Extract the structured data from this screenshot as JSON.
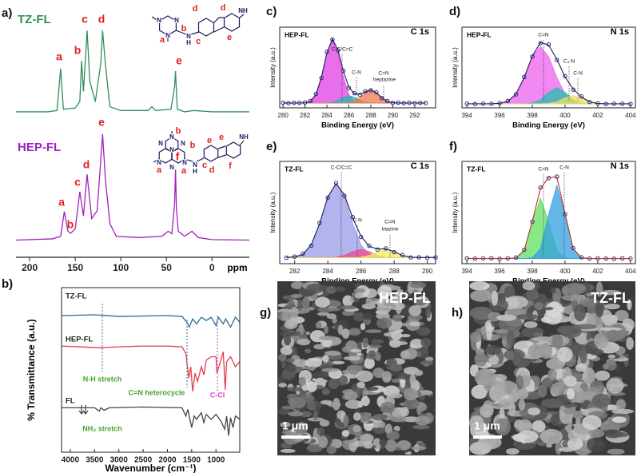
{
  "chart_data": [
    {
      "type": "line",
      "label": "a)",
      "xlim": [
        215,
        -41
      ],
      "ylim": [
        0,
        100
      ],
      "xticks": [
        200,
        150,
        100,
        50,
        0
      ],
      "xlabel": "ppm",
      "series": [
        {
          "name": "TZ-FL",
          "color": "#2f8f5b",
          "x": [
            215,
            180,
            170,
            166,
            163,
            150,
            145,
            143,
            141,
            137,
            134,
            128,
            122,
            120,
            117,
            112,
            100,
            70,
            66,
            62,
            45,
            41,
            40,
            39,
            38,
            30,
            20,
            0,
            -41
          ],
          "values": [
            56,
            56,
            56.5,
            73,
            57,
            57.5,
            60,
            76,
            64,
            88,
            68,
            60,
            75,
            88,
            75,
            58,
            56.5,
            56.5,
            58,
            56.5,
            57,
            66,
            72,
            64,
            57,
            56,
            56.5,
            56,
            56
          ],
          "peaks": [
            "a",
            "b",
            "c",
            "d",
            "e"
          ]
        },
        {
          "name": "HEP-FL",
          "color": "#a020c0",
          "x": [
            215,
            175,
            166,
            162,
            158,
            155,
            150,
            145,
            141,
            137,
            132,
            126,
            123,
            120,
            117,
            112,
            105,
            80,
            55,
            48,
            44,
            41,
            40,
            39,
            37,
            30,
            22,
            15,
            0,
            -41
          ],
          "values": [
            5.5,
            6,
            7,
            16.7,
            9,
            8.2,
            10,
            24.5,
            15,
            31.4,
            14,
            17,
            32,
            47.2,
            30,
            12,
            7,
            6.5,
            7,
            9,
            8,
            20,
            33.3,
            18,
            9,
            7,
            9,
            6.5,
            5.7,
            5.5
          ],
          "peaks": [
            "a",
            "b",
            "c",
            "d",
            "e",
            "f"
          ]
        }
      ],
      "structures": [
        [
          "N",
          "N",
          "N",
          "a",
          "b",
          "N",
          "H",
          "c",
          "d",
          "d",
          "e",
          "NH"
        ],
        [
          "N",
          "N",
          "N",
          "N",
          "N",
          "N",
          "N",
          "b",
          "b",
          "a",
          "a",
          "N",
          "H",
          "c",
          "d",
          "e",
          "e",
          "f",
          "NH"
        ]
      ]
    },
    {
      "type": "line",
      "label": "b)",
      "xlim": [
        4180,
        510
      ],
      "ylim": [
        0,
        100
      ],
      "xticks": [
        4000,
        3500,
        3000,
        2500,
        2000,
        1500,
        1000
      ],
      "xlabel": "Wavenumber (cm⁻¹)",
      "ylabel": "% Transmittance (a.u.)",
      "series": [
        {
          "name": "TZ-FL",
          "color": "#2a6f8f",
          "x": [
            4180,
            3500,
            3000,
            2000,
            1700,
            1600,
            1550,
            1480,
            1400,
            1300,
            1200,
            1100,
            1000,
            950,
            850,
            800,
            700,
            600,
            510
          ],
          "values": [
            83,
            83.5,
            82.5,
            83,
            82.5,
            79,
            76,
            81,
            78,
            82,
            80,
            82,
            77,
            82,
            78,
            81,
            76,
            82,
            79
          ]
        },
        {
          "name": "HEP-FL",
          "color": "#e0404a",
          "x": [
            4180,
            3400,
            3000,
            2500,
            2000,
            1700,
            1620,
            1560,
            1520,
            1480,
            1430,
            1380,
            1300,
            1250,
            1200,
            1100,
            1000,
            980,
            900,
            850,
            810,
            780,
            700,
            600,
            510
          ],
          "values": [
            64.5,
            63.5,
            64,
            64.5,
            64.5,
            64,
            60,
            45,
            52,
            37,
            48,
            43,
            52,
            47,
            56,
            58,
            58,
            48,
            56,
            61,
            38,
            55,
            58,
            52,
            55
          ]
        },
        {
          "name": "FL",
          "color": "#444444",
          "x": [
            4180,
            3500,
            3400,
            3370,
            3300,
            3200,
            2500,
            1700,
            1620,
            1580,
            1500,
            1450,
            1400,
            1300,
            1250,
            1200,
            1100,
            1000,
            900,
            820,
            780,
            740,
            700,
            650,
            600,
            510
          ],
          "values": [
            27,
            27,
            25,
            27,
            25.5,
            27,
            27.5,
            27,
            22,
            26,
            15,
            22,
            20,
            24,
            18,
            23,
            20,
            23,
            19,
            14,
            22,
            10,
            21,
            15,
            22,
            20
          ]
        }
      ],
      "annotations": [
        "N-H stretch",
        "C=N heterocycle",
        "C-Cl",
        "NH₂ stretch"
      ]
    },
    {
      "type": "xps",
      "label": "c)",
      "sample": "HEP-FL",
      "core": "C 1s",
      "xlim": [
        279.7,
        293.9
      ],
      "ylim": [
        0,
        100
      ],
      "xticks": [
        280,
        282,
        284,
        286,
        288,
        290,
        292
      ],
      "xlabel": "Binding Energy (eV)",
      "ylabel": "Intensity (a.u.)",
      "x": [
        280,
        280.5,
        281,
        281.5,
        282,
        282.5,
        283,
        283.5,
        284,
        284.5,
        285,
        285.5,
        286,
        286.5,
        287,
        287.5,
        288,
        288.5,
        289,
        289.5,
        290,
        290.5,
        291,
        291.5,
        292,
        292.5,
        293
      ],
      "series": [
        {
          "color": "#e23de6",
          "style": "area",
          "values": [
            6,
            6,
            6,
            6,
            6.3,
            8.2,
            16.5,
            38,
            68.4,
            84,
            68.4,
            38,
            16.5,
            8.2,
            6.3,
            6,
            6,
            6,
            6,
            6,
            6,
            6,
            6,
            6,
            6,
            6,
            6
          ]
        },
        {
          "color": "#2ab5b5",
          "style": "area",
          "values": [
            6,
            6,
            6,
            6,
            6,
            6,
            6,
            6,
            6,
            7.2,
            9.7,
            13.2,
            15,
            13.2,
            9.7,
            7.2,
            6.25,
            6,
            6,
            6,
            6,
            6,
            6,
            6,
            6,
            6,
            6
          ]
        },
        {
          "color": "#f07a50",
          "style": "area",
          "values": [
            6,
            6,
            6,
            6,
            6,
            6,
            6,
            6,
            6,
            6,
            6,
            6,
            6,
            8.2,
            12.6,
            18.8,
            22,
            18.8,
            12.6,
            8.2,
            6.4,
            6,
            6,
            6,
            6,
            6,
            6
          ]
        },
        {
          "color": "#2a2a7a",
          "style": "dots",
          "values": [
            6.4,
            5.8,
            6.2,
            6.1,
            6.6,
            8.6,
            17.2,
            37.1,
            69.5,
            84.6,
            71.3,
            46.1,
            24.8,
            18.1,
            16.2,
            20.5,
            21.8,
            19.3,
            12.1,
            8.5,
            6.1,
            6.3,
            5.9,
            6.2,
            5.8,
            6.1,
            6
          ]
        },
        {
          "color": "#1d1d5a",
          "style": "line",
          "values": [
            6,
            6,
            6,
            6,
            6.3,
            8.2,
            16.5,
            38,
            68.4,
            85.2,
            72.1,
            45.2,
            25.5,
            17.6,
            16.6,
            20,
            22.3,
            18.8,
            12.6,
            8.2,
            6.4,
            6,
            6,
            6,
            6,
            6,
            6
          ]
        }
      ],
      "annotations": [
        "C-C/C=C",
        "C-N",
        "C=N",
        "heptazine"
      ]
    },
    {
      "type": "xps",
      "label": "d)",
      "sample": "HEP-FL",
      "core": "N 1s",
      "xlim": [
        393.7,
        404.3
      ],
      "ylim": [
        0,
        100
      ],
      "xticks": [
        394,
        396,
        398,
        400,
        402,
        404
      ],
      "xlabel": "Binding Energy (eV)",
      "ylabel": "Intensity (a.u.)",
      "x": [
        394,
        394.5,
        395,
        395.5,
        396,
        396.5,
        397,
        397.5,
        398,
        398.5,
        399,
        399.5,
        400,
        400.5,
        401,
        401.5,
        402,
        402.5,
        403,
        403.5,
        404
      ],
      "series": [
        {
          "color": "#ee60ee",
          "style": "area",
          "values": [
            5,
            5,
            5,
            5,
            5.6,
            8.1,
            17.2,
            37.5,
            63.4,
            76,
            63.4,
            37.5,
            17.2,
            8.1,
            5.6,
            5,
            5,
            5,
            5,
            5,
            5
          ]
        },
        {
          "color": "#20c0b0",
          "style": "area",
          "values": [
            5,
            5,
            5,
            5,
            5,
            5,
            5,
            5,
            5.9,
            10,
            19.1,
            25,
            19.1,
            10,
            5.9,
            5,
            5,
            5,
            5,
            5,
            5
          ]
        },
        {
          "color": "#f0e060",
          "style": "area",
          "values": [
            5,
            5,
            5,
            5,
            5,
            5,
            5,
            5,
            5,
            5,
            5.4,
            7.5,
            12.1,
            15,
            12.1,
            7.5,
            5.4,
            5,
            5,
            5,
            5
          ]
        },
        {
          "color": "#2a2a7a",
          "style": "dots",
          "values": [
            5.3,
            4.8,
            5.2,
            5.1,
            5.9,
            8.6,
            16.7,
            38.2,
            63.6,
            80.2,
            78.5,
            59.3,
            39.1,
            22.6,
            14.1,
            7.2,
            5.7,
            4.9,
            5.2,
            5.1,
            4.9
          ]
        },
        {
          "color": "#1d1d5a",
          "style": "line",
          "values": [
            5,
            5,
            5,
            5,
            5.6,
            8.1,
            17.2,
            37.5,
            64.3,
            81,
            77.9,
            60,
            38.4,
            23.1,
            13.6,
            7.5,
            5.4,
            5,
            5,
            5,
            5
          ]
        }
      ],
      "annotations": [
        "C=N",
        "C₃-N",
        "C-N"
      ]
    },
    {
      "type": "xps",
      "label": "e)",
      "sample": "TZ-FL",
      "core": "C 1s",
      "xlim": [
        281.1,
        290.5
      ],
      "ylim": [
        0,
        100
      ],
      "xticks": [
        282,
        284,
        286,
        288,
        290
      ],
      "xlabel": "Binding Energy (eV)",
      "ylabel": "Intensity (a.u.)",
      "x": [
        281.5,
        282,
        282.5,
        283,
        283.5,
        284,
        284.5,
        285,
        285.5,
        286,
        286.5,
        287,
        287.5,
        288,
        288.5,
        289,
        289.5,
        290,
        290.5
      ],
      "series": [
        {
          "color": "#9a9ae8",
          "style": "area",
          "values": [
            6.1,
            6.6,
            9.2,
            18.4,
            39,
            65.3,
            78,
            65.3,
            39,
            18.4,
            9.2,
            6.6,
            6.1,
            6,
            6,
            6,
            6,
            6,
            6
          ]
        },
        {
          "color": "#f04890",
          "style": "area",
          "values": [
            6,
            6,
            6,
            6,
            6,
            6,
            6.35,
            8,
            11.7,
            14,
            11.7,
            8,
            6.35,
            6,
            6,
            6,
            6,
            6,
            6
          ]
        },
        {
          "color": "#f0f060",
          "style": "area",
          "values": [
            6,
            6,
            6,
            6,
            6,
            6,
            6,
            6,
            6,
            6.35,
            8,
            11.7,
            14,
            11.7,
            8,
            6.35,
            6,
            6,
            6
          ]
        },
        {
          "color": "#2a2a7a",
          "style": "dots",
          "values": [
            5.8,
            6.9,
            9.8,
            17.6,
            39.8,
            64.5,
            78.9,
            66.4,
            45.5,
            26.1,
            17.4,
            13.8,
            14.9,
            11.2,
            8.4,
            6.1,
            6.2,
            5.8,
            6.1
          ]
        },
        {
          "color": "#1d1d5a",
          "style": "line",
          "values": [
            6.1,
            6.6,
            9.2,
            18.4,
            39,
            65.3,
            78.4,
            67.3,
            44.7,
            26.8,
            16.9,
            14.3,
            14.5,
            11.7,
            8,
            6.4,
            6,
            6,
            6
          ]
        }
      ],
      "annotations": [
        "C-C/C=C",
        "C-N",
        "C=N",
        "triazine"
      ]
    },
    {
      "type": "xps",
      "label": "f)",
      "sample": "TZ-FL",
      "core": "N 1s",
      "xlim": [
        393.7,
        404.3
      ],
      "ylim": [
        0,
        100
      ],
      "xticks": [
        394,
        396,
        398,
        400,
        402,
        404
      ],
      "xlabel": "Binding Energy (eV)",
      "ylabel": "Intensity (a.u.)",
      "x": [
        394,
        394.5,
        395,
        395.5,
        396,
        396.5,
        397,
        397.5,
        398,
        398.5,
        399,
        399.5,
        400,
        400.5,
        401,
        401.5,
        402,
        402.5,
        403,
        403.5,
        404
      ],
      "series": [
        {
          "color": "#60e060",
          "style": "area",
          "values": [
            5,
            5,
            5,
            5,
            5,
            5,
            5.6,
            13,
            40.8,
            64,
            40.8,
            13,
            5.6,
            5,
            5,
            5,
            5,
            5,
            5,
            5,
            5
          ]
        },
        {
          "color": "#30a0e0",
          "style": "area",
          "values": [
            5,
            5,
            5,
            5,
            5,
            5,
            5,
            5,
            5.8,
            14.7,
            48.5,
            76.6,
            48.5,
            14.7,
            5.8,
            5,
            5,
            5,
            5,
            5,
            5
          ]
        },
        {
          "color": "#2a2a7a",
          "style": "dots",
          "values": [
            5.2,
            4.9,
            5.1,
            5.3,
            4.8,
            5.2,
            6,
            13.5,
            40.9,
            74.4,
            83.6,
            85.1,
            48.4,
            15.2,
            6.2,
            4.9,
            5.3,
            5,
            4.8,
            5.2,
            5
          ]
        },
        {
          "color": "#c03030",
          "style": "line",
          "values": [
            5,
            5,
            5,
            5,
            5,
            5,
            5.6,
            13,
            41.6,
            73.7,
            84.3,
            84.6,
            49.1,
            14.7,
            5.8,
            5,
            5,
            5,
            5,
            5,
            5
          ]
        }
      ],
      "annotations": [
        "C=N",
        "C-N"
      ]
    }
  ],
  "images": [
    {
      "label": "g)",
      "title": "HEP-FL",
      "scale": "1 μm"
    },
    {
      "label": "h)",
      "title": "TZ-FL",
      "scale": "1 μm"
    }
  ]
}
